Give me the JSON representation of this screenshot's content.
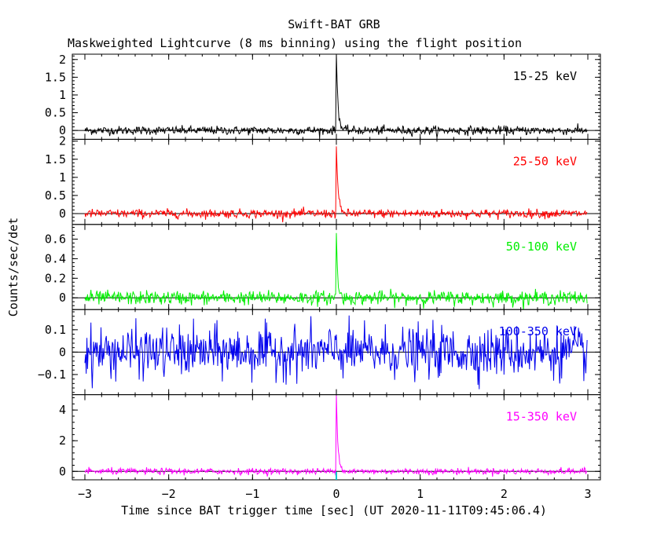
{
  "chart_data": {
    "type": "line",
    "title": "Swift-BAT GRB",
    "subtitle": "Maskweighted Lightcurve (8 ms binning) using the flight position",
    "xlabel": "Time since BAT trigger time [sec] (UT 2020-11-11T09:45:06.4)",
    "ylabel": "Counts/sec/det",
    "xlim": [
      -3.15,
      3.15
    ],
    "xticks": [
      "-3",
      "-2",
      "-1",
      "0",
      "1",
      "2",
      "3"
    ],
    "xtick_values": [
      -3,
      -2,
      -1,
      0,
      1,
      2,
      3
    ],
    "zero_line": true,
    "panels": [
      {
        "band": "15-25 keV",
        "color": "#000000",
        "ylim": [
          -0.25,
          2.15
        ],
        "yticks": [
          "0",
          "0.5",
          "1",
          "1.5",
          "2"
        ],
        "ytick_values": [
          0,
          0.5,
          1,
          1.5,
          2
        ],
        "noise_sigma": 0.06,
        "peak": {
          "t": 0.0,
          "value": 2.15,
          "decay": 0.02
        }
      },
      {
        "band": "25-50 keV",
        "color": "#ff0000",
        "ylim": [
          -0.3,
          2.05
        ],
        "yticks": [
          "0",
          "0.5",
          "1",
          "1.5",
          "2"
        ],
        "ytick_values": [
          0,
          0.5,
          1,
          1.5,
          2
        ],
        "noise_sigma": 0.06,
        "peak": {
          "t": 0.0,
          "value": 1.85,
          "decay": 0.02
        }
      },
      {
        "band": "50-100 keV",
        "color": "#00ee00",
        "ylim": [
          -0.12,
          0.75
        ],
        "yticks": [
          "0",
          "0.2",
          "0.4",
          "0.6"
        ],
        "ytick_values": [
          0,
          0.2,
          0.4,
          0.6
        ],
        "noise_sigma": 0.035,
        "peak": {
          "t": 0.0,
          "value": 0.7,
          "decay": 0.015
        }
      },
      {
        "band": "100-350 keV",
        "color": "#0000ee",
        "ylim": [
          -0.19,
          0.19
        ],
        "yticks": [
          "-0.1",
          "0",
          "0.1"
        ],
        "ytick_values": [
          -0.1,
          0,
          0.1
        ],
        "noise_sigma": 0.055,
        "peak": {
          "t": 0.0,
          "value": 0.05,
          "decay": 0.01
        }
      },
      {
        "band": "15-350 keV",
        "color": "#ff00ff",
        "ylim": [
          -0.55,
          5.0
        ],
        "yticks": [
          "0",
          "2",
          "4"
        ],
        "ytick_values": [
          0,
          2,
          4
        ],
        "noise_sigma": 0.1,
        "peak": {
          "t": 0.0,
          "value": 4.9,
          "decay": 0.02
        }
      }
    ]
  }
}
